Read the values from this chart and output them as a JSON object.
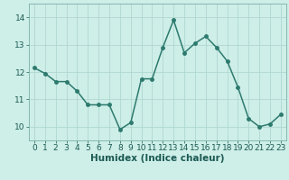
{
  "x": [
    0,
    1,
    2,
    3,
    4,
    5,
    6,
    7,
    8,
    9,
    10,
    11,
    12,
    13,
    14,
    15,
    16,
    17,
    18,
    19,
    20,
    21,
    22,
    23
  ],
  "y": [
    12.15,
    11.95,
    11.65,
    11.65,
    11.3,
    10.8,
    10.8,
    10.8,
    9.9,
    10.15,
    11.75,
    11.75,
    12.9,
    13.9,
    12.7,
    13.05,
    13.3,
    12.9,
    12.4,
    11.45,
    10.3,
    10.0,
    10.1,
    10.45
  ],
  "line_color": "#2d7a6e",
  "marker": "o",
  "markersize": 2.5,
  "linewidth": 1.1,
  "xlabel": "Humidex (Indice chaleur)",
  "ylim": [
    9.5,
    14.5
  ],
  "yticks": [
    10,
    11,
    12,
    13,
    14
  ],
  "xticks": [
    0,
    1,
    2,
    3,
    4,
    5,
    6,
    7,
    8,
    9,
    10,
    11,
    12,
    13,
    14,
    15,
    16,
    17,
    18,
    19,
    20,
    21,
    22,
    23
  ],
  "bg_color": "#ceeee8",
  "grid_color": "#b0d8d2",
  "xlabel_fontsize": 7.5,
  "tick_fontsize": 6.5
}
